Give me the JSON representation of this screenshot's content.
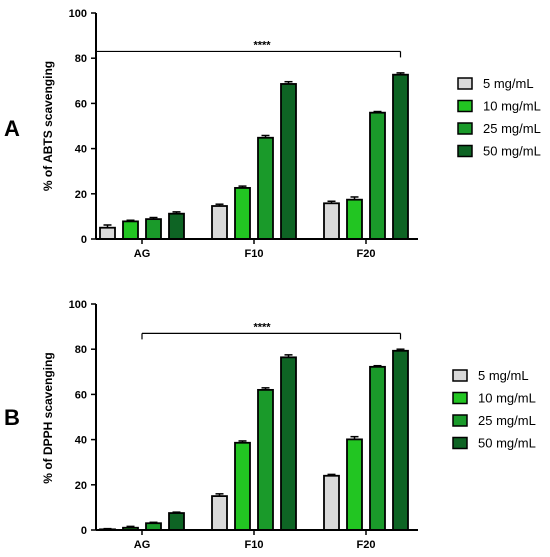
{
  "colors": {
    "5 mg/mL": "#d9d9d9",
    "10 mg/mL": "#22c522",
    "25 mg/mL": "#1a9a2a",
    "50 mg/mL": "#0e6424",
    "axis": "#000000"
  },
  "chart_data": [
    {
      "type": "bar",
      "panel": "A",
      "categories": [
        "AG",
        "F10",
        "F20"
      ],
      "series": [
        {
          "name": "5 mg/mL",
          "values": [
            5,
            14.6,
            15.8
          ],
          "errors": [
            1.2,
            0.8,
            0.9
          ]
        },
        {
          "name": "10 mg/mL",
          "values": [
            7.8,
            22.6,
            17.4
          ],
          "errors": [
            0.5,
            0.8,
            1.2
          ]
        },
        {
          "name": "25 mg/mL",
          "values": [
            8.8,
            44.8,
            55.9
          ],
          "errors": [
            0.7,
            1.0,
            0.5
          ]
        },
        {
          "name": "50 mg/mL",
          "values": [
            11.2,
            68.6,
            72.7
          ],
          "errors": [
            0.8,
            1.0,
            0.8
          ]
        }
      ],
      "xlabel": "",
      "ylabel": "% of ABTS scavenging",
      "ylim": [
        0,
        100
      ],
      "yticks": [
        0,
        20,
        40,
        60,
        80,
        100
      ],
      "legend": "right",
      "grid": false,
      "significance": {
        "label": "****",
        "from": "AG",
        "to": "F20",
        "y": 83
      }
    },
    {
      "type": "bar",
      "panel": "B",
      "categories": [
        "AG",
        "F10",
        "F20"
      ],
      "series": [
        {
          "name": "5 mg/mL",
          "values": [
            0.3,
            15,
            24
          ],
          "errors": [
            0.3,
            1.0,
            0.6
          ]
        },
        {
          "name": "10 mg/mL",
          "values": [
            1,
            38.6,
            40.1
          ],
          "errors": [
            0.6,
            0.8,
            1.2
          ]
        },
        {
          "name": "25 mg/mL",
          "values": [
            3,
            62,
            72.2
          ],
          "errors": [
            0.4,
            0.9,
            0.5
          ]
        },
        {
          "name": "50 mg/mL",
          "values": [
            7.5,
            76.4,
            79.3
          ],
          "errors": [
            0.4,
            1.1,
            0.7
          ]
        }
      ],
      "xlabel": "",
      "ylabel": "% of DPPH scavenging",
      "ylim": [
        0,
        100
      ],
      "yticks": [
        0,
        20,
        40,
        60,
        80,
        100
      ],
      "legend": "right",
      "grid": false,
      "significance": {
        "label": "****",
        "from": "AG",
        "to": "F20",
        "y": 87
      }
    }
  ]
}
